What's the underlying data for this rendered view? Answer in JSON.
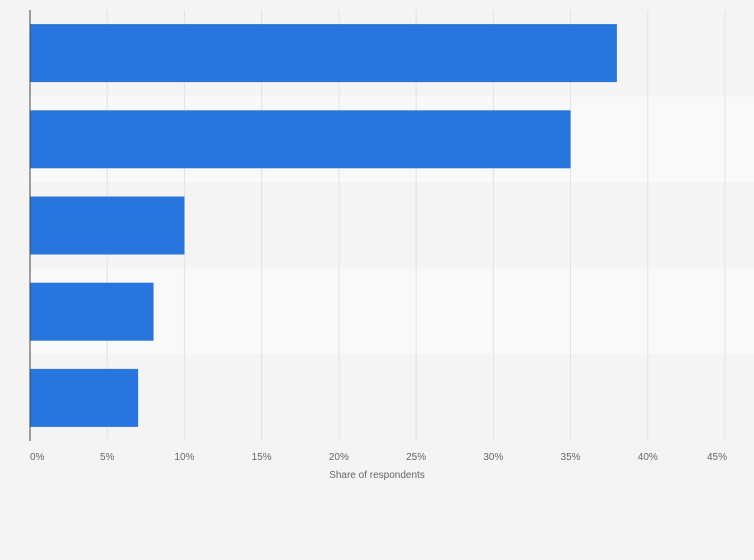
{
  "chart_data": {
    "type": "bar",
    "orientation": "horizontal",
    "categories": [
      "",
      "",
      "",
      "",
      ""
    ],
    "values": [
      38,
      35,
      10,
      8,
      7
    ],
    "xlabel": "Share of respondents",
    "ylabel": "",
    "xlim": [
      0,
      45
    ],
    "x_ticks": [
      {
        "value": 0,
        "label": "0%"
      },
      {
        "value": 5,
        "label": "5%"
      },
      {
        "value": 10,
        "label": "10%"
      },
      {
        "value": 15,
        "label": "15%"
      },
      {
        "value": 20,
        "label": "20%"
      },
      {
        "value": 25,
        "label": "25%"
      },
      {
        "value": 30,
        "label": "30%"
      },
      {
        "value": 35,
        "label": "35%"
      },
      {
        "value": 40,
        "label": "40%"
      },
      {
        "value": 45,
        "label": "45%"
      }
    ],
    "grid": true,
    "legend": "none",
    "colors": {
      "bar": "#2876dd",
      "background": "#f4f4f4",
      "band_alt": "#f9f9f9",
      "grid": "#e2e2e2",
      "axis": "#444444",
      "text": "#666666"
    }
  }
}
